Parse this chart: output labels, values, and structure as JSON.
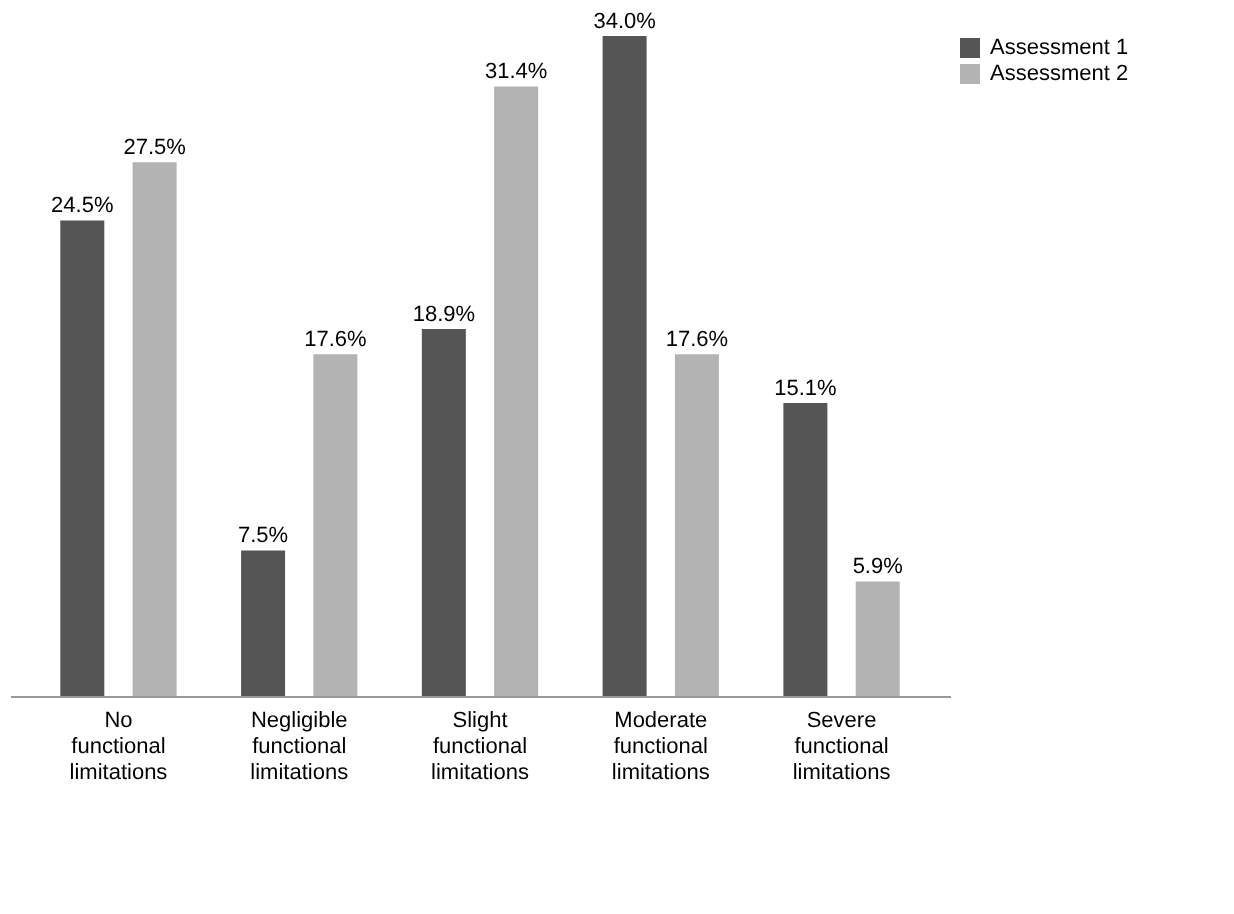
{
  "chart_data": {
    "type": "bar",
    "categories": [
      "No functional limitations",
      "Negligible functional limitations",
      "Slight functional limitations",
      "Moderate functional limitations",
      "Severe functional limitations"
    ],
    "series": [
      {
        "name": "Assessment 1",
        "color": "#555555",
        "values": [
          24.5,
          7.5,
          18.9,
          34.0,
          15.1
        ],
        "value_labels": [
          "24.5%",
          "7.5%",
          "18.9%",
          "34.0%",
          "15.1%"
        ]
      },
      {
        "name": "Assessment 2",
        "color": "#b3b3b3",
        "values": [
          27.5,
          17.6,
          31.4,
          17.6,
          5.9
        ],
        "value_labels": [
          "27.5%",
          "17.6%",
          "31.4%",
          "17.6%",
          "5.9%"
        ]
      }
    ],
    "legend": "top right"
  }
}
